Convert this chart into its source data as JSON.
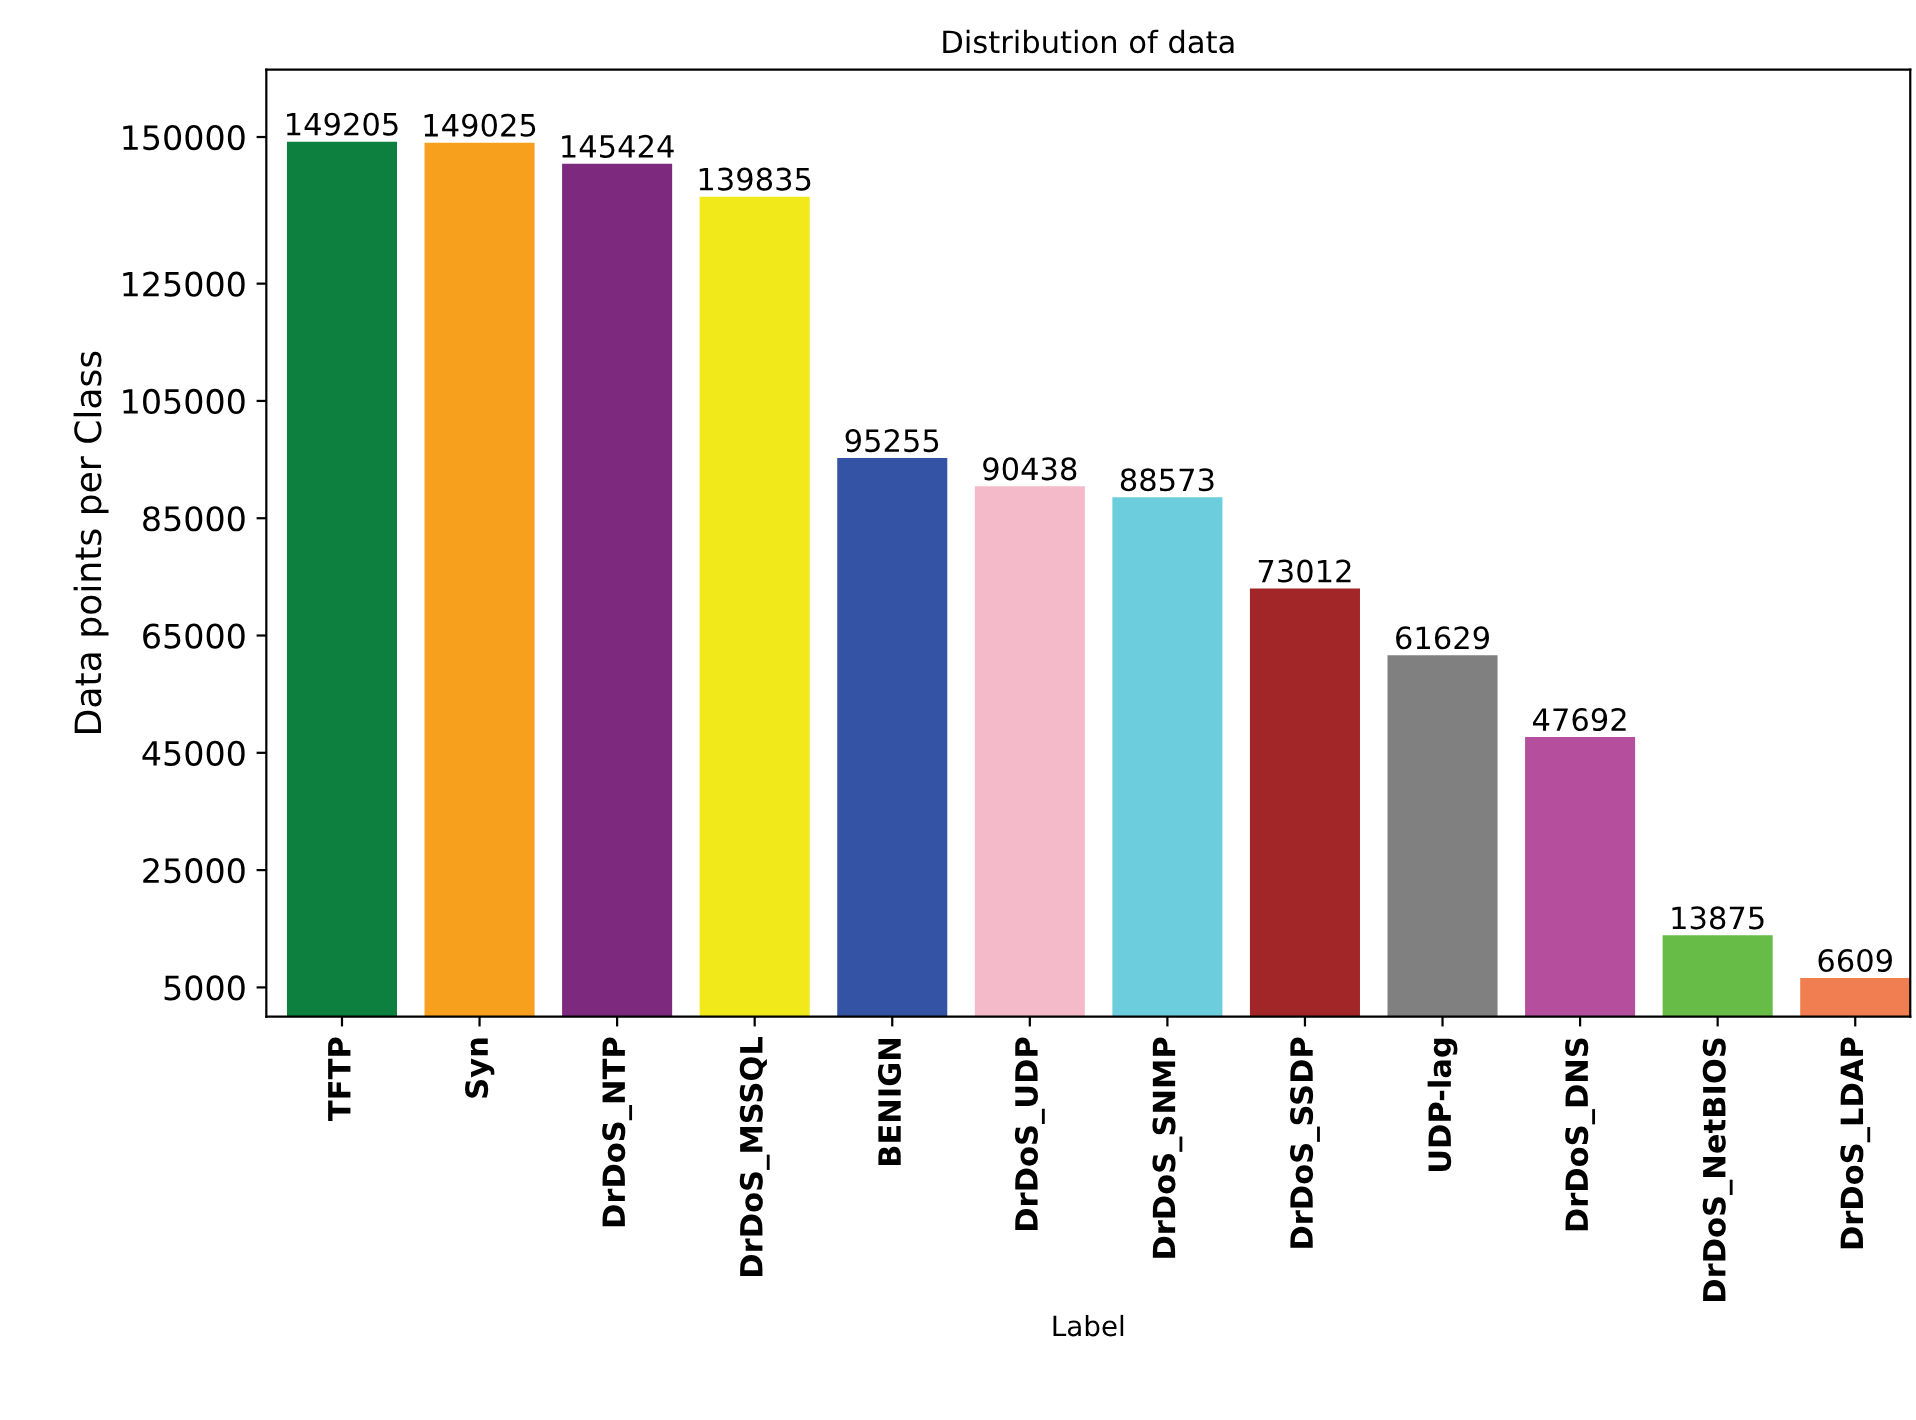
{
  "chart_data": {
    "type": "bar",
    "title": "Distribution of data",
    "xlabel": "Label",
    "ylabel": "Data points per Class",
    "categories": [
      "TFTP",
      "Syn",
      "DrDoS_NTP",
      "DrDoS_MSSQL",
      "BENIGN",
      "DrDoS_UDP",
      "DrDoS_SNMP",
      "DrDoS_SSDP",
      "UDP-lag",
      "DrDoS_DNS",
      "DrDoS_NetBIOS",
      "DrDoS_LDAP"
    ],
    "values": [
      149205,
      149025,
      145424,
      139835,
      95255,
      90438,
      88573,
      73012,
      61629,
      47692,
      13875,
      6609
    ],
    "colors": [
      "#0d7f3f",
      "#f6a01e",
      "#7d2a7e",
      "#f1e91a",
      "#3553a4",
      "#f5bac9",
      "#6ccddd",
      "#a22528",
      "#808080",
      "#b54f9d",
      "#66bc46",
      "#f07e50"
    ],
    "ylim": [
      0,
      161500
    ],
    "yticks": [
      5000,
      25000,
      45000,
      65000,
      85000,
      105000,
      125000,
      150000
    ],
    "data_labels": true,
    "grid": false
  }
}
